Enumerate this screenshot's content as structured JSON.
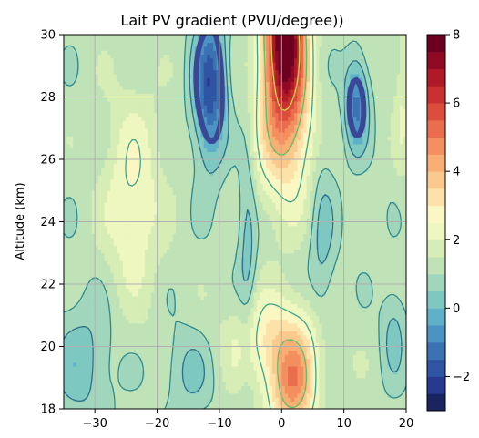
{
  "chart_data": {
    "type": "heatmap",
    "title": "Lait PV gradient (PVU/degree))",
    "xlabel": "",
    "ylabel": "Altitude (km)",
    "xlim": [
      -35,
      20
    ],
    "ylim": [
      18,
      30
    ],
    "grid": true,
    "x_ticks": [
      -30,
      -20,
      -10,
      0,
      10,
      20
    ],
    "x_tick_labels": [
      "−30",
      "−20",
      "−10",
      "0",
      "10",
      "20"
    ],
    "y_ticks": [
      18,
      20,
      22,
      24,
      26,
      28,
      30
    ],
    "y_tick_labels": [
      "18",
      "20",
      "22",
      "24",
      "26",
      "28",
      "30"
    ],
    "colorbar": {
      "colormap": "RdYlBu_r",
      "vmin": -3,
      "vmax": 8,
      "levels": 22,
      "ticks": [
        -2,
        0,
        2,
        4,
        6,
        8
      ],
      "tick_labels": [
        "−2",
        "0",
        "2",
        "4",
        "6",
        "8"
      ],
      "colors": [
        "#1a2460",
        "#263a8f",
        "#2f55a3",
        "#3a72b3",
        "#4a93c2",
        "#5eb1c8",
        "#7ec8c2",
        "#a0d6bb",
        "#bfe3b7",
        "#d6edb5",
        "#eef7bf",
        "#fbf7c3",
        "#fce2a8",
        "#fcc98c",
        "#f9ae74",
        "#f48f5f",
        "#ea6e4d",
        "#dc4d3c",
        "#c9302f",
        "#b01a27",
        "#8f0a22",
        "#6d0020"
      ]
    },
    "features": [
      {
        "name": "positive maximum",
        "x": 0.5,
        "y": 29.5,
        "value": 8
      },
      {
        "name": "positive maximum",
        "x": 1.5,
        "y": 18.8,
        "value": 4.2
      },
      {
        "name": "negative minimum",
        "x": -11,
        "y": 28,
        "value": -1.9
      },
      {
        "name": "negative minimum",
        "x": 12,
        "y": 27.5,
        "value": -1.2
      },
      {
        "name": "weak positive ridge",
        "x": -24,
        "y": 25,
        "value": 2.6
      }
    ],
    "contour_levels": [
      0.5,
      1.0,
      2.5,
      4.0,
      6.0
    ],
    "thick_contour_level": -0.4
  }
}
